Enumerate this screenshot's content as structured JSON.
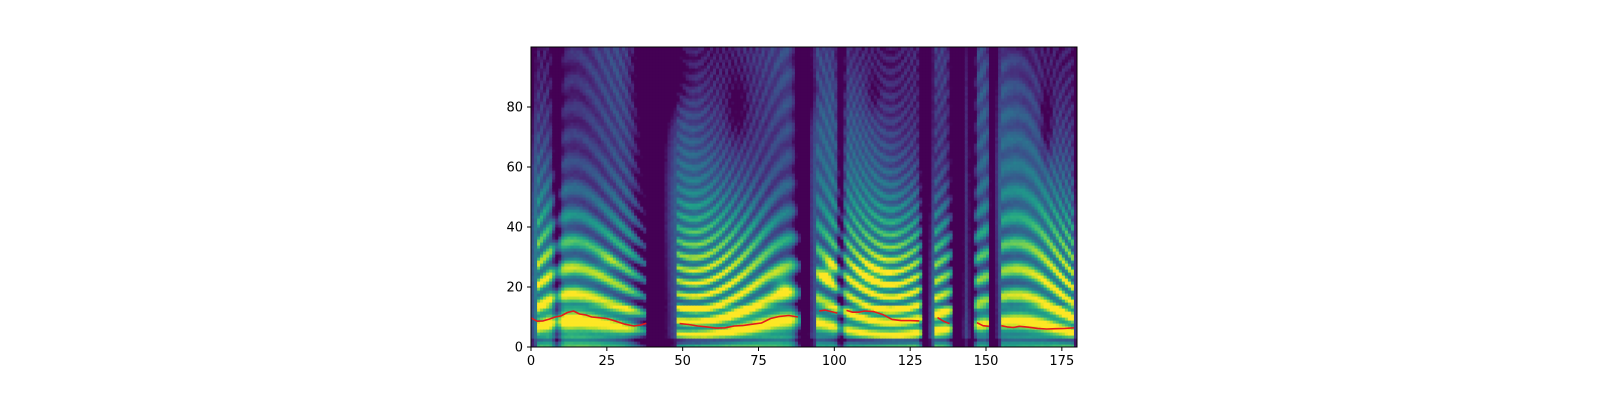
{
  "chart_data": {
    "type": "heatmap",
    "title": "",
    "xlabel": "",
    "ylabel": "",
    "xlim": [
      0,
      180
    ],
    "ylim": [
      0,
      100
    ],
    "x_ticks": [
      0,
      25,
      50,
      75,
      100,
      125,
      150,
      175
    ],
    "y_ticks": [
      0,
      20,
      40,
      60,
      80
    ],
    "colormap": "viridis",
    "grid": false,
    "legend": "none",
    "series": [
      {
        "type": "line",
        "color": "#e41a1c",
        "segments": [
          [
            [
              0,
              9.7
            ],
            [
              2,
              8.6
            ],
            [
              4,
              8.7
            ],
            [
              6,
              9.3
            ],
            [
              8,
              10.0
            ],
            [
              10,
              10.4
            ],
            [
              12,
              11.5
            ],
            [
              14,
              12.0
            ],
            [
              16,
              11.0
            ],
            [
              18,
              10.7
            ],
            [
              20,
              10.0
            ],
            [
              22,
              9.8
            ],
            [
              25,
              9.5
            ],
            [
              28,
              8.6
            ],
            [
              31,
              7.6
            ],
            [
              34,
              7.0
            ],
            [
              36,
              7.3
            ],
            [
              38,
              7.9
            ]
          ],
          [
            [
              49,
              7.8
            ],
            [
              52,
              7.5
            ],
            [
              55,
              7.0
            ],
            [
              58,
              6.7
            ],
            [
              61,
              6.3
            ],
            [
              64,
              6.4
            ],
            [
              67,
              7.0
            ],
            [
              70,
              7.2
            ],
            [
              73,
              7.6
            ],
            [
              76,
              8.0
            ],
            [
              79,
              9.5
            ],
            [
              82,
              10.2
            ],
            [
              85,
              10.5
            ],
            [
              88,
              10.0
            ]
          ],
          [
            [
              95,
              12.0
            ],
            [
              97,
              12.3
            ],
            [
              99,
              11.8
            ],
            [
              101,
              11.3
            ]
          ],
          [
            [
              104,
              12.2
            ],
            [
              106,
              11.6
            ],
            [
              108,
              11.6
            ],
            [
              110,
              12.0
            ],
            [
              113,
              11.8
            ],
            [
              116,
              10.8
            ],
            [
              119,
              9.2
            ],
            [
              122,
              8.8
            ],
            [
              125,
              8.8
            ],
            [
              128,
              8.7
            ]
          ],
          [
            [
              134,
              9.8
            ],
            [
              136,
              8.6
            ],
            [
              138,
              7.8
            ]
          ],
          [
            [
              147,
              8.1
            ],
            [
              149,
              7.1
            ],
            [
              151,
              6.9
            ]
          ],
          [
            [
              155,
              7.1
            ],
            [
              157,
              6.7
            ],
            [
              159,
              6.5
            ],
            [
              161,
              6.9
            ],
            [
              164,
              6.6
            ],
            [
              167,
              6.2
            ],
            [
              170,
              6.0
            ],
            [
              173,
              6.1
            ],
            [
              176,
              6.2
            ],
            [
              179,
              6.4
            ]
          ]
        ]
      }
    ]
  }
}
